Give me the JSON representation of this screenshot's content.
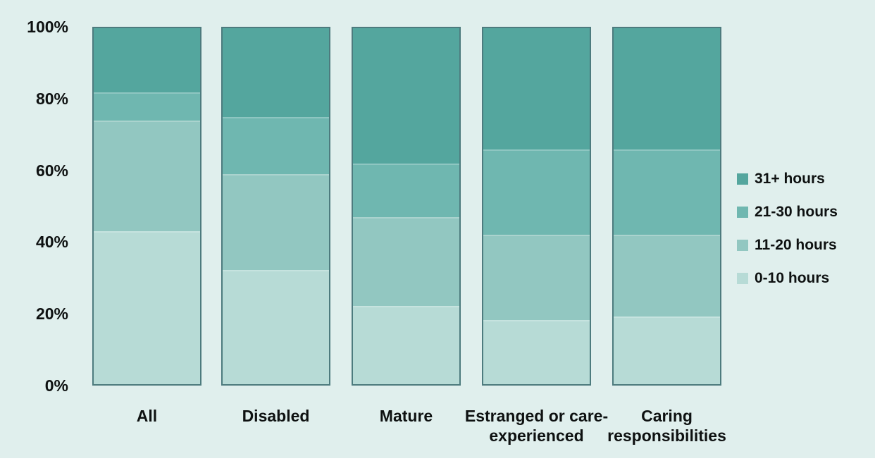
{
  "colors": {
    "background": "#e0efed",
    "bar_border": "#4d7b7e",
    "text": "#0e1111"
  },
  "chart_data": {
    "type": "bar",
    "stacked": true,
    "unit": "percent",
    "title": "",
    "categories": [
      "All",
      "Disabled",
      "Mature",
      "Estranged or care-experienced",
      "Caring responsibilities"
    ],
    "series": [
      {
        "name": "31+ hours",
        "color": "#54a69e",
        "values": [
          18,
          25,
          38,
          34,
          34
        ]
      },
      {
        "name": "21-30 hours",
        "color": "#6fb7b0",
        "values": [
          8,
          16,
          15,
          24,
          24
        ]
      },
      {
        "name": "11-20 hours",
        "color": "#92c7c1",
        "values": [
          31,
          27,
          25,
          24,
          23
        ]
      },
      {
        "name": "0-10 hours",
        "color": "#b7dbd6",
        "values": [
          43,
          32,
          22,
          18,
          19
        ]
      }
    ],
    "series_order": "top-to-bottom as stacked in each bar; legend shown in same order",
    "y_axis": {
      "min": 0,
      "max": 100,
      "ticks": [
        "0%",
        "20%",
        "40%",
        "60%",
        "80%",
        "100%"
      ]
    },
    "x_axis": {
      "label": ""
    },
    "legend_position": "right",
    "grid": false
  }
}
